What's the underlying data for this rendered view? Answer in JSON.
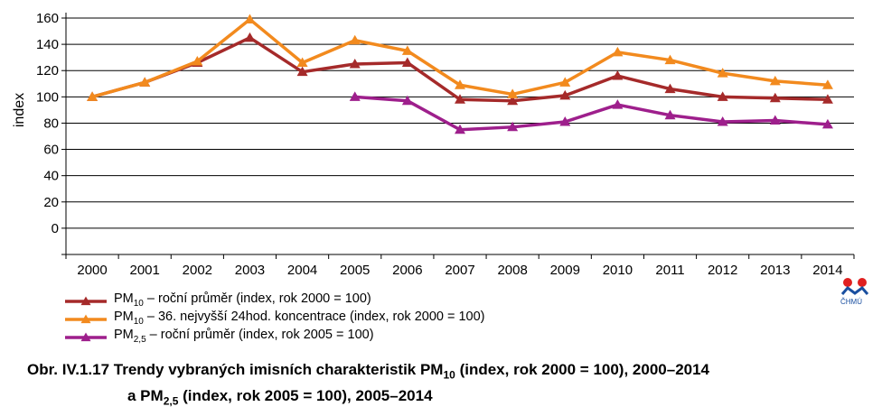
{
  "chart_data": {
    "type": "line",
    "x": [
      "2000",
      "2001",
      "2002",
      "2003",
      "2004",
      "2005",
      "2006",
      "2007",
      "2008",
      "2009",
      "2010",
      "2011",
      "2012",
      "2013",
      "2014"
    ],
    "ylabel": "index",
    "yticks": [
      "0",
      "20",
      "40",
      "60",
      "80",
      "100",
      "120",
      "140",
      "160"
    ],
    "ylim": [
      -20,
      160
    ],
    "grid": true,
    "legend_position": "bottom",
    "series": [
      {
        "id": "pm10_avg",
        "color": "#a52a2a",
        "label_main": "PM",
        "label_sub": "10",
        "label_rest": " – roční průměr (index, rok 2000 = 100)",
        "values": [
          100,
          111,
          126,
          145,
          119,
          125,
          126,
          98,
          97,
          101,
          116,
          106,
          100,
          99,
          98
        ]
      },
      {
        "id": "pm10_36",
        "color": "#f28a1e",
        "label_main": "PM",
        "label_sub": "10",
        "label_rest": " – 36. nejvyšší 24hod. koncentrace (index, rok 2000 = 100)",
        "values": [
          100,
          111,
          127,
          159,
          126,
          143,
          135,
          109,
          102,
          111,
          134,
          128,
          118,
          112,
          109
        ]
      },
      {
        "id": "pm25_avg",
        "color": "#9e1f8c",
        "label_main": "PM",
        "label_sub": "2,5",
        "label_rest": " – roční průměr (index, rok 2005 = 100)",
        "values": [
          null,
          null,
          null,
          null,
          null,
          100,
          97,
          75,
          77,
          81,
          94,
          86,
          81,
          82,
          79
        ]
      }
    ]
  },
  "caption": {
    "line1_pre": "Obr. IV.1.17  Trendy vybraných imisních charakteristik PM",
    "line1_sub": "10",
    "line1_post": " (index, rok 2000 = 100), 2000–2014",
    "line2_pre": "a PM",
    "line2_sub": "2,5",
    "line2_post": "  (index, rok 2005 = 100), 2005–2014"
  },
  "logo": {
    "text": "ČHMÚ",
    "colors": [
      "#e02020",
      "#1a4fa0"
    ]
  }
}
